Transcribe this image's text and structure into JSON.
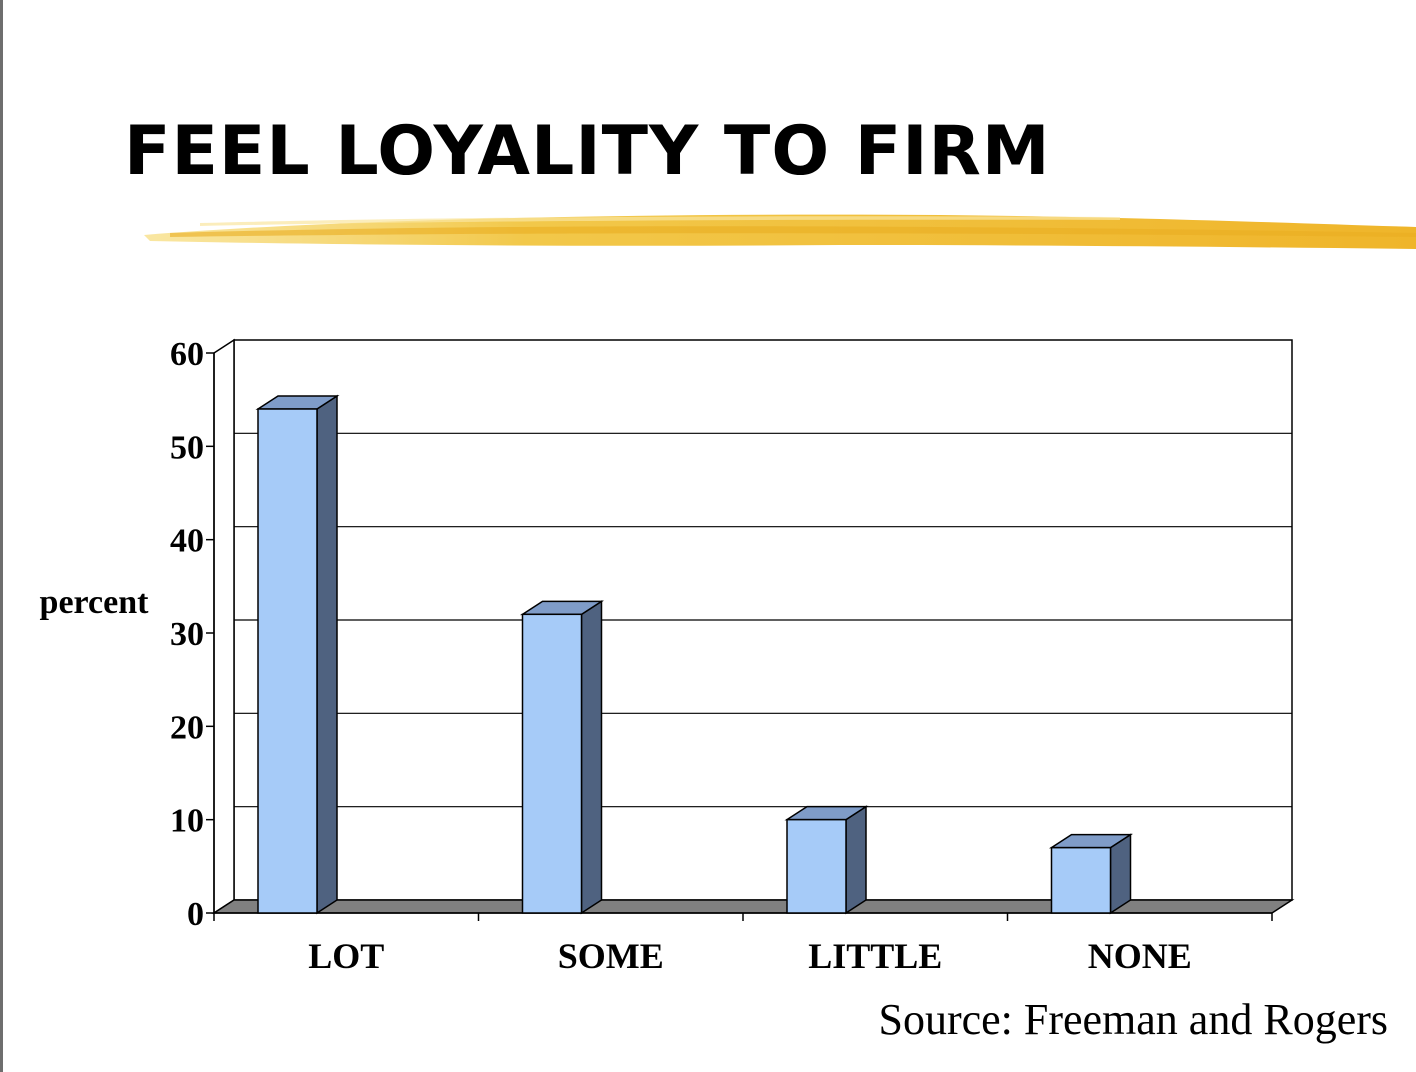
{
  "slide": {
    "title": "FEEL LOYALITY TO FIRM",
    "source": "Source: Freeman and Rogers"
  },
  "colors": {
    "accent_stroke": "#F2C230",
    "bar_front": "#A6CBF8",
    "bar_top": "#7F9CC8",
    "bar_side": "#4F6280",
    "floor": "#808080"
  },
  "chart_data": {
    "type": "bar",
    "categories": [
      "LOT",
      "SOME",
      "LITTLE",
      "NONE"
    ],
    "values": [
      54,
      32,
      10,
      7
    ],
    "xlabel": "",
    "ylabel": "percent",
    "ylim": [
      0,
      60
    ],
    "yticks": [
      0,
      10,
      20,
      30,
      40,
      50,
      60
    ],
    "grid": true,
    "legend": "none",
    "style": "3d-column"
  }
}
